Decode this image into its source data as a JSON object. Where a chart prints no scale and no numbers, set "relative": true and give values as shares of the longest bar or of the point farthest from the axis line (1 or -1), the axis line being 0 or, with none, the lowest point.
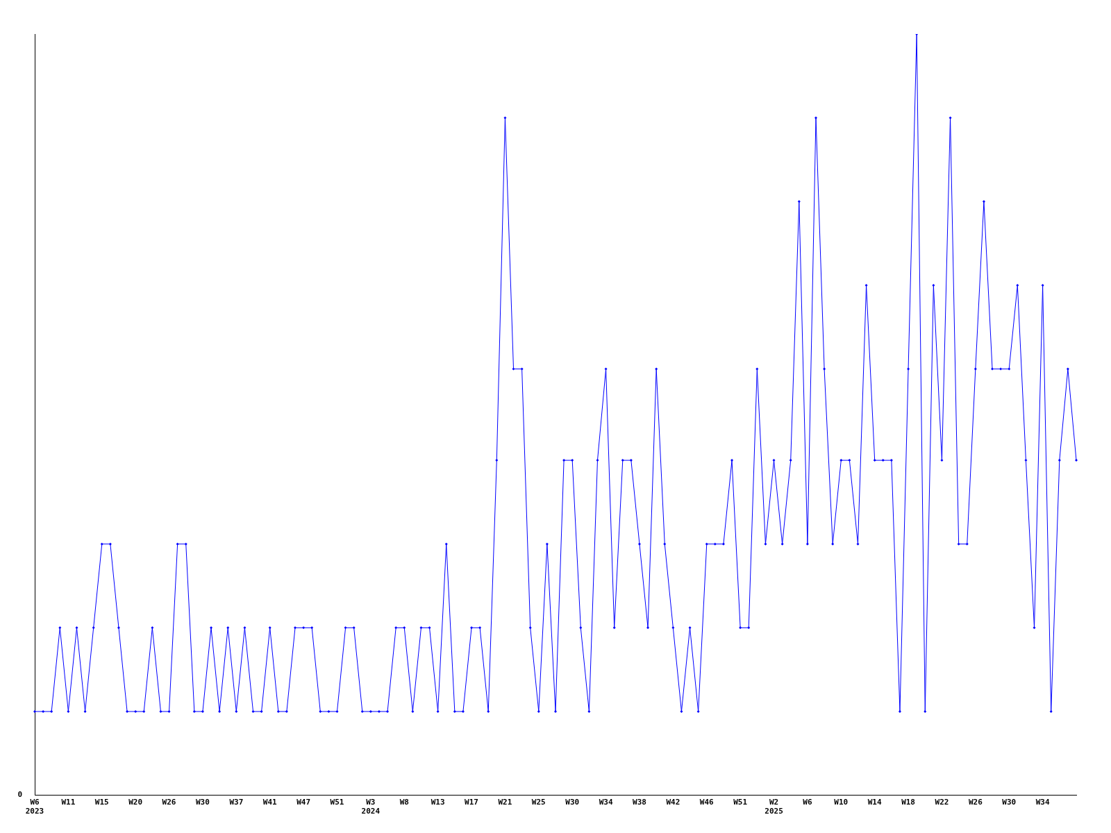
{
  "chart_data": {
    "type": "line",
    "relative": true,
    "color": "#0000ff",
    "marker": "diamond",
    "grid": false,
    "legend": false,
    "annotations": [
      "0"
    ],
    "categories": [
      "W6\n2023",
      null,
      null,
      null,
      "W11",
      null,
      null,
      null,
      "W15",
      null,
      null,
      null,
      "W20",
      null,
      null,
      null,
      "W26",
      null,
      null,
      null,
      "W30",
      null,
      null,
      null,
      "W37",
      null,
      null,
      null,
      "W41",
      null,
      null,
      null,
      "W47",
      null,
      null,
      null,
      "W51",
      null,
      null,
      null,
      "W3\n2024",
      null,
      null,
      null,
      "W8",
      null,
      null,
      null,
      "W13",
      null,
      null,
      null,
      "W17",
      null,
      null,
      null,
      "W21",
      null,
      null,
      null,
      "W25",
      null,
      null,
      null,
      "W30",
      null,
      null,
      null,
      "W34",
      null,
      null,
      null,
      "W38",
      null,
      null,
      null,
      "W42",
      null,
      null,
      null,
      "W46",
      null,
      null,
      null,
      "W51",
      null,
      null,
      null,
      "W2\n2025",
      null,
      null,
      null,
      "W6",
      null,
      null,
      null,
      "W10",
      null,
      null,
      null,
      "W14",
      null,
      null,
      null,
      "W18",
      null,
      null,
      null,
      "W22",
      null,
      null,
      null,
      "W26",
      null,
      null,
      null,
      "W30",
      null,
      null,
      null,
      "W34",
      null,
      null,
      null,
      null
    ],
    "values": [
      0.11,
      0.11,
      0.11,
      0.22,
      0.11,
      0.22,
      0.11,
      0.22,
      0.33,
      0.33,
      0.22,
      0.11,
      0.11,
      0.11,
      0.22,
      0.11,
      0.11,
      0.33,
      0.33,
      0.11,
      0.11,
      0.22,
      0.11,
      0.22,
      0.11,
      0.22,
      0.11,
      0.11,
      0.22,
      0.11,
      0.11,
      0.22,
      0.22,
      0.22,
      0.11,
      0.11,
      0.11,
      0.22,
      0.22,
      0.11,
      0.11,
      0.11,
      0.11,
      0.22,
      0.22,
      0.11,
      0.22,
      0.22,
      0.11,
      0.33,
      0.11,
      0.11,
      0.22,
      0.22,
      0.11,
      0.44,
      0.89,
      0.56,
      0.56,
      0.22,
      0.11,
      0.33,
      0.11,
      0.44,
      0.44,
      0.22,
      0.11,
      0.44,
      0.56,
      0.22,
      0.44,
      0.44,
      0.33,
      0.22,
      0.56,
      0.33,
      0.22,
      0.11,
      0.22,
      0.11,
      0.33,
      0.33,
      0.33,
      0.44,
      0.22,
      0.22,
      0.56,
      0.33,
      0.44,
      0.33,
      0.44,
      0.78,
      0.33,
      0.89,
      0.56,
      0.33,
      0.44,
      0.44,
      0.33,
      0.67,
      0.44,
      0.44,
      0.44,
      0.11,
      0.56,
      1,
      0.11,
      0.67,
      0.44,
      0.89,
      0.33,
      0.33,
      0.56,
      0.78,
      0.56,
      0.56,
      0.56,
      0.67,
      0.44,
      0.22,
      0.67,
      0.11,
      0.44,
      0.56,
      0.44
    ]
  }
}
